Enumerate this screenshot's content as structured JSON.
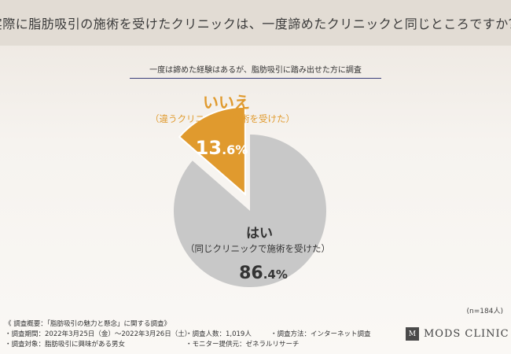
{
  "header": {
    "title": "実際に脂肪吸引の施術を受けたクリニックは、一度諦めたクリニックと同じところですか？"
  },
  "chart_data": {
    "type": "pie",
    "subtitle": "一度は諦めた経験はあるが、脂肪吸引に踏み出せた方に調査",
    "slices": [
      {
        "label": "はい",
        "sublabel": "（同じクリニックで施術を受けた）",
        "value": 86.4,
        "display_int": "86",
        "display_dec": ".4%",
        "color": "#c8c8c8"
      },
      {
        "label": "いいえ",
        "sublabel": "（違うクリニックで施術を受けた）",
        "value": 13.6,
        "display_int": "13",
        "display_dec": ".6%",
        "color": "#e09a2e"
      }
    ],
    "n_label": "(n=184人)"
  },
  "footer": {
    "line1": "《 調査概要：「脂肪吸引の魅力と懸念」に関する調査》",
    "period": "・調査期間：2022年3月25日（金）〜2022年3月26日（土）",
    "count": "・調査人数：1,019人",
    "method": "・調査方法：インターネット調査",
    "target": "・調査対象：脂肪吸引に興味がある男女",
    "provider": "・モニター提供元：ゼネラルリサーチ"
  },
  "logo": {
    "mark": "M",
    "name": "MODS CLINIC"
  },
  "colors": {
    "accent": "#e09a2e",
    "pie_main": "#c8c8c8",
    "header_bg": "#e2dcd4",
    "subtitle_line": "#3a3f7a"
  }
}
